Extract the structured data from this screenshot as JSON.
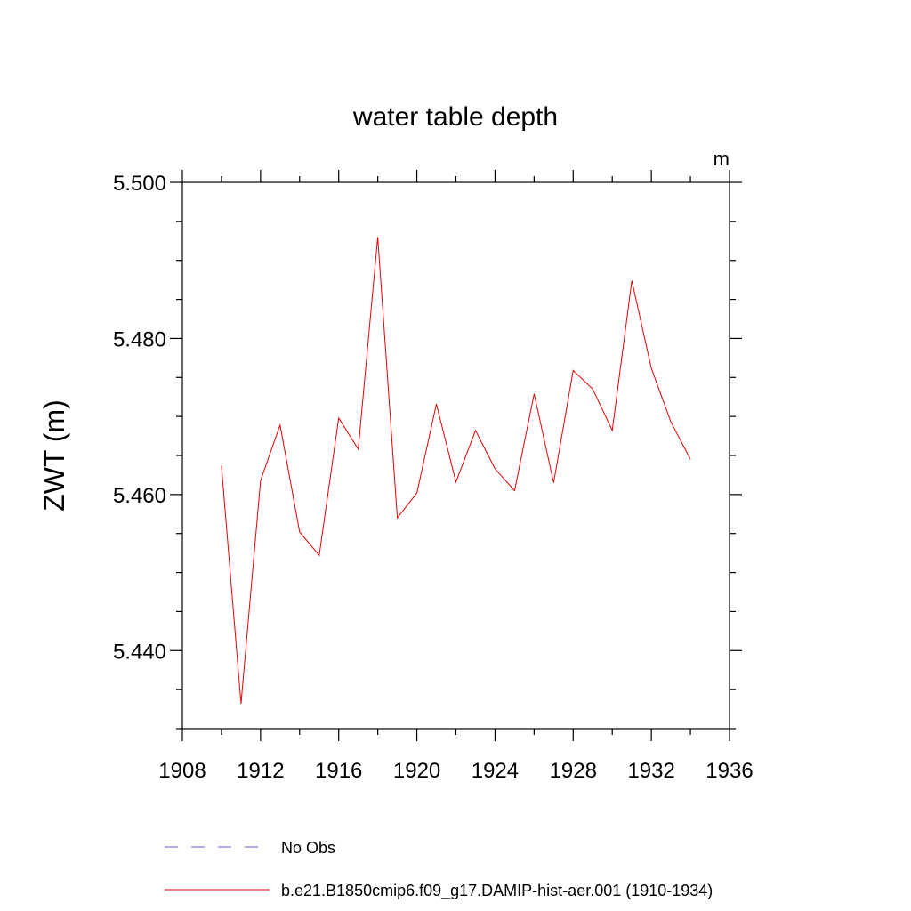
{
  "chart_data": {
    "type": "line",
    "title": "water table depth",
    "units_label": "m",
    "xlabel": "",
    "ylabel": "ZWT  (m)",
    "xlim": [
      1908,
      1936
    ],
    "ylim": [
      5.43,
      5.5
    ],
    "x_ticks": [
      1908,
      1912,
      1916,
      1920,
      1924,
      1928,
      1932,
      1936
    ],
    "x_tick_labels": [
      "1908",
      "1912",
      "1916",
      "1920",
      "1924",
      "1928",
      "1932",
      "1936"
    ],
    "x_minor_step": 2,
    "y_ticks": [
      5.44,
      5.46,
      5.48,
      5.5
    ],
    "y_tick_labels": [
      "5.440",
      "5.460",
      "5.480",
      "5.500"
    ],
    "y_minor_step": 0.005,
    "grid": false,
    "legend_position": "bottom",
    "series": [
      {
        "name": "b.e21.B1850cmip6.f09_g17.DAMIP-hist-aer.001 (1910-1934)",
        "color": "#e60000",
        "style": "solid",
        "x": [
          1910,
          1911,
          1912,
          1913,
          1914,
          1915,
          1916,
          1917,
          1918,
          1919,
          1920,
          1921,
          1922,
          1923,
          1924,
          1925,
          1926,
          1927,
          1928,
          1929,
          1930,
          1931,
          1932,
          1933,
          1934
        ],
        "y": [
          5.4637,
          5.4332,
          5.4618,
          5.4689,
          5.4552,
          5.4522,
          5.4698,
          5.4658,
          5.493,
          5.457,
          5.4602,
          5.4716,
          5.4616,
          5.4682,
          5.4633,
          5.4605,
          5.4729,
          5.4615,
          5.4759,
          5.4735,
          5.4682,
          5.4874,
          5.4762,
          5.4693,
          5.4645
        ]
      }
    ],
    "legend": [
      {
        "label": "No Obs",
        "color": "#6a5acd",
        "style": "dashed"
      },
      {
        "label": "b.e21.B1850cmip6.f09_g17.DAMIP-hist-aer.001 (1910-1934)",
        "color": "#e60000",
        "style": "solid"
      }
    ]
  }
}
